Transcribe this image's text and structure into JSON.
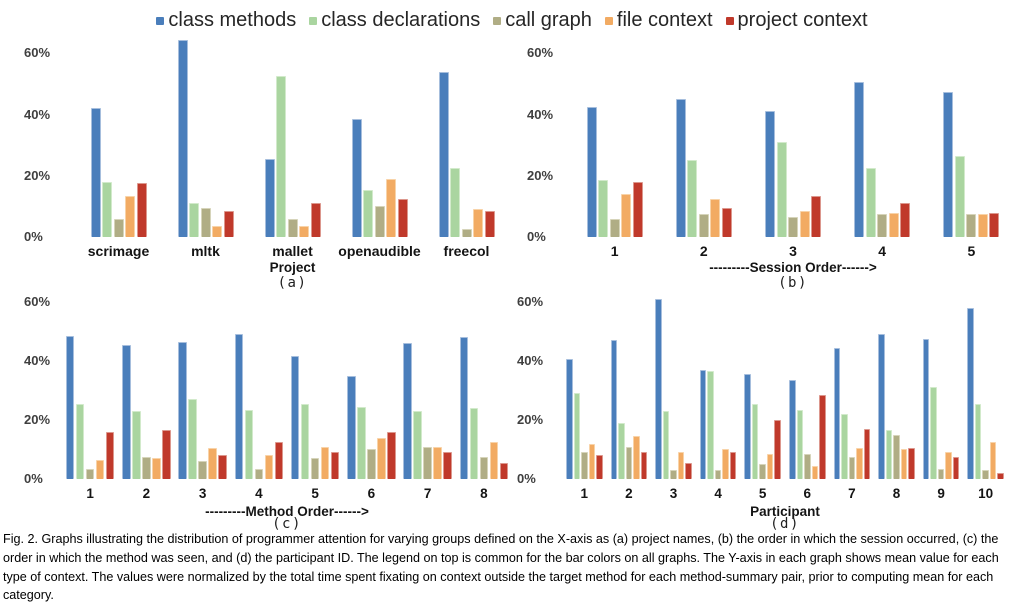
{
  "legend": {
    "items": [
      {
        "label": "class methods",
        "color": "#4a7ebb",
        "border": "#a6bedd"
      },
      {
        "label": "class declarations",
        "color": "#aad5a0",
        "border": "#d2eacb"
      },
      {
        "label": "call graph",
        "color": "#b0ad85",
        "border": "#d6d4ba"
      },
      {
        "label": "file context",
        "color": "#f2ab63",
        "border": "#f8d3a8"
      },
      {
        "label": "project context",
        "color": "#c0392b",
        "border": "#dc978d"
      }
    ]
  },
  "caption": "Fig. 2. Graphs illustrating the distribution of programmer attention for varying groups defined on the X-axis as (a) project names, (b) the order in which the session occurred, (c) the order in which the method was seen, and (d) the participant ID. The legend on top is common for the bar colors on all graphs. The Y-axis in each graph shows mean value for each type of context. The values were normalized by the total time spent fixating on context outside the target method for each method-summary pair, prior to computing mean for each category.",
  "chart_data": [
    {
      "id": "a",
      "type": "bar",
      "xlabel": "Project",
      "sublabel": "(a)",
      "ylim": [
        0,
        60
      ],
      "yticks": [
        "0%",
        "20%",
        "40%",
        "60%"
      ],
      "grid": false,
      "legend_position": "top-shared",
      "categories": [
        "scrimage",
        "mltk",
        "mallet",
        "openaudible",
        "freecol"
      ],
      "series": [
        {
          "name": "class methods",
          "values": [
            42,
            64.5,
            25.5,
            38.5,
            54
          ]
        },
        {
          "name": "class declarations",
          "values": [
            18,
            11,
            52.5,
            15.5,
            22.5
          ]
        },
        {
          "name": "call graph",
          "values": [
            6,
            9.5,
            6,
            10,
            2.5
          ]
        },
        {
          "name": "file context",
          "values": [
            13.5,
            3.5,
            3.5,
            19,
            9
          ]
        },
        {
          "name": "project context",
          "values": [
            17.5,
            8.5,
            11,
            12.5,
            8.5
          ]
        }
      ]
    },
    {
      "id": "b",
      "type": "bar",
      "xlabel": "---------Session Order------>",
      "sublabel": "(b)",
      "ylim": [
        0,
        60
      ],
      "yticks": [
        "0%",
        "20%",
        "40%",
        "60%"
      ],
      "grid": false,
      "legend_position": "top-shared",
      "categories": [
        "1",
        "2",
        "3",
        "4",
        "5"
      ],
      "series": [
        {
          "name": "class methods",
          "values": [
            42.5,
            45,
            41,
            50.5,
            47.5
          ]
        },
        {
          "name": "class declarations",
          "values": [
            18.5,
            25,
            31,
            22.5,
            26.5
          ]
        },
        {
          "name": "call graph",
          "values": [
            6,
            7.5,
            6.5,
            7.5,
            7.5
          ]
        },
        {
          "name": "file context",
          "values": [
            14,
            12.5,
            8.5,
            8,
            7.5
          ]
        },
        {
          "name": "project context",
          "values": [
            18,
            9.5,
            13.5,
            11,
            8
          ]
        }
      ]
    },
    {
      "id": "c",
      "type": "bar",
      "xlabel": "---------Method Order------>",
      "sublabel": "(c)",
      "ylim": [
        0,
        60
      ],
      "yticks": [
        "0%",
        "20%",
        "40%",
        "60%"
      ],
      "grid": false,
      "legend_position": "top-shared",
      "categories": [
        "1",
        "2",
        "3",
        "4",
        "5",
        "6",
        "7",
        "8"
      ],
      "series": [
        {
          "name": "class methods",
          "values": [
            48.5,
            45.5,
            46.5,
            49,
            41.5,
            35,
            46,
            48
          ]
        },
        {
          "name": "class declarations",
          "values": [
            25.5,
            23,
            27,
            23.5,
            25.5,
            24.5,
            23,
            24
          ]
        },
        {
          "name": "call graph",
          "values": [
            3.5,
            7.5,
            6,
            3.5,
            7,
            10,
            11,
            7.5
          ]
        },
        {
          "name": "file context",
          "values": [
            6.5,
            7,
            10.5,
            8,
            11,
            14,
            11,
            12.5
          ]
        },
        {
          "name": "project context",
          "values": [
            16,
            16.5,
            8,
            12.5,
            9,
            16,
            9,
            5.5
          ]
        }
      ]
    },
    {
      "id": "d",
      "type": "bar",
      "xlabel": "Participant",
      "sublabel": "(d)",
      "ylim": [
        0,
        60
      ],
      "yticks": [
        "0%",
        "20%",
        "40%",
        "60%"
      ],
      "grid": false,
      "legend_position": "top-shared",
      "categories": [
        "1",
        "2",
        "3",
        "4",
        "5",
        "6",
        "7",
        "8",
        "9",
        "10"
      ],
      "series": [
        {
          "name": "class methods",
          "values": [
            40.5,
            47,
            61,
            37,
            35.5,
            33.5,
            44.5,
            49,
            47.5,
            58
          ]
        },
        {
          "name": "class declarations",
          "values": [
            29,
            19,
            23,
            36.5,
            25.5,
            23.5,
            22,
            16.5,
            31,
            25.5
          ]
        },
        {
          "name": "call graph",
          "values": [
            9,
            11,
            3,
            3,
            5,
            8.5,
            7.5,
            15,
            3.5,
            3
          ]
        },
        {
          "name": "file context",
          "values": [
            12,
            14.5,
            9,
            10,
            8.5,
            4.5,
            10.5,
            10,
            9,
            12.5
          ]
        },
        {
          "name": "project context",
          "values": [
            8,
            9,
            5.5,
            9,
            20,
            28.5,
            17,
            10.5,
            7.5,
            2
          ]
        }
      ]
    }
  ]
}
